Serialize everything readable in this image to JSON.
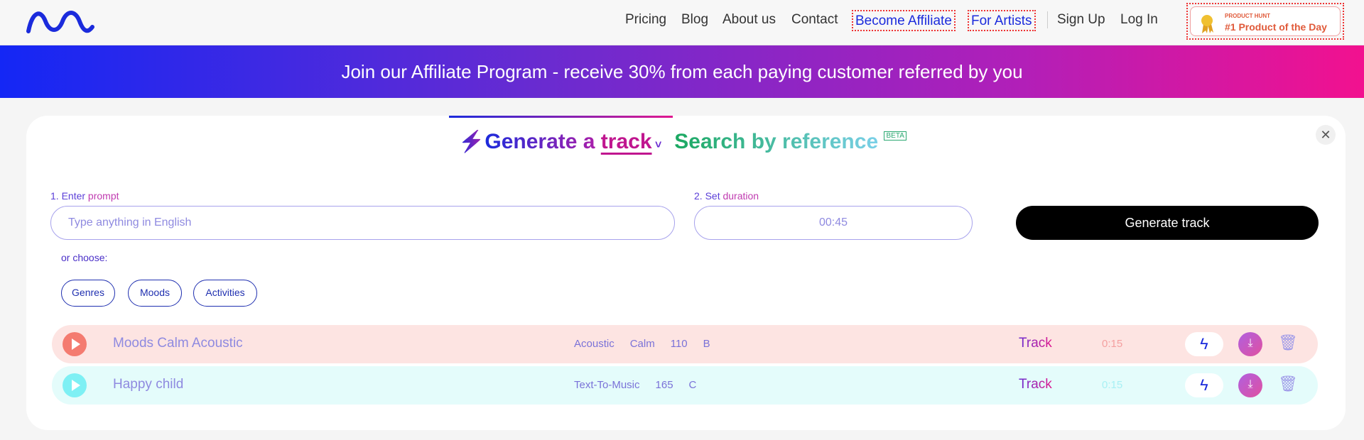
{
  "header": {
    "nav": [
      "Pricing",
      "Blog",
      "About us",
      "Contact",
      "Become Affiliate",
      "For Artists",
      "Sign Up",
      "Log In"
    ],
    "badge": {
      "small": "PRODUCT HUNT",
      "big": "#1 Product of the Day"
    }
  },
  "banner": {
    "text": "Join our Affiliate Program - receive 30% from each paying customer referred by you"
  },
  "main": {
    "title_generate": "Generate a ",
    "title_track": "track",
    "title_search": "Search by reference",
    "beta": "BETA",
    "prompt_label_num": "1. Enter ",
    "prompt_label_word": "prompt",
    "prompt_placeholder": "Type anything in English",
    "duration_label_num": "2. Set ",
    "duration_label_word": "duration",
    "duration_value": "00:45",
    "generate_label": "Generate track",
    "or_choose": "or choose:",
    "pills": [
      "Genres",
      "Moods",
      "Activities"
    ]
  },
  "tracks": [
    {
      "name": "Moods Calm Acoustic",
      "tags": [
        "Acoustic",
        "Calm",
        "110",
        "B"
      ],
      "type": "Track",
      "duration": "0:15",
      "bg": "#fde4e2",
      "accent": "#f47b70",
      "dur_color": "#f4a0a0"
    },
    {
      "name": "Happy child",
      "tags": [
        "Text-To-Music",
        "165",
        "C"
      ],
      "type": "Track",
      "duration": "0:15",
      "bg": "#e4fcfb",
      "accent": "#7ef0f4",
      "dur_color": "#a8f0f4"
    }
  ]
}
